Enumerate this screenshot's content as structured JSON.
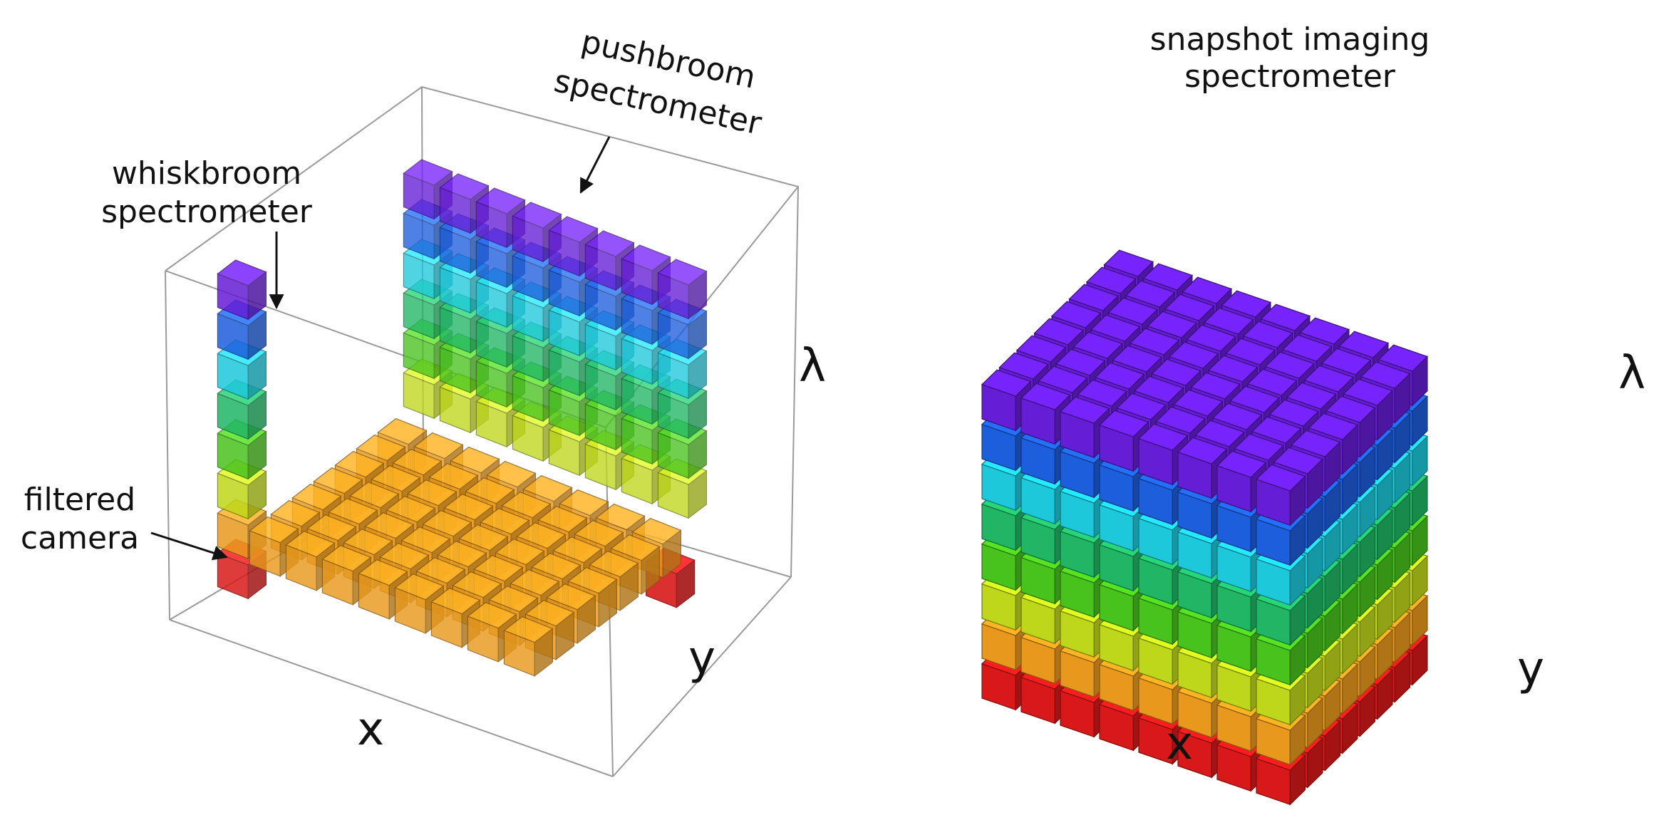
{
  "left_panel": {
    "labels": {
      "pushbroom": [
        "pushbroom",
        "spectrometer"
      ],
      "whiskbroom": [
        "whiskbroom",
        "spectrometer"
      ],
      "filtered": [
        "filtered",
        "camera"
      ]
    },
    "axes": {
      "x": "x",
      "y": "y",
      "lambda": "λ"
    }
  },
  "right_panel": {
    "title": [
      "snapshot imaging",
      "spectrometer"
    ],
    "axes": {
      "x": "x",
      "y": "y",
      "lambda": "λ"
    }
  },
  "colors": {
    "spectral_bands_top_to_bottom": [
      "#6a1fe0",
      "#1f63e8",
      "#1fd2e6",
      "#22c06a",
      "#4ccc1e",
      "#c9e21c",
      "#f4a11e",
      "#e41a1a"
    ],
    "filtered_layer": "#f4a11e"
  }
}
